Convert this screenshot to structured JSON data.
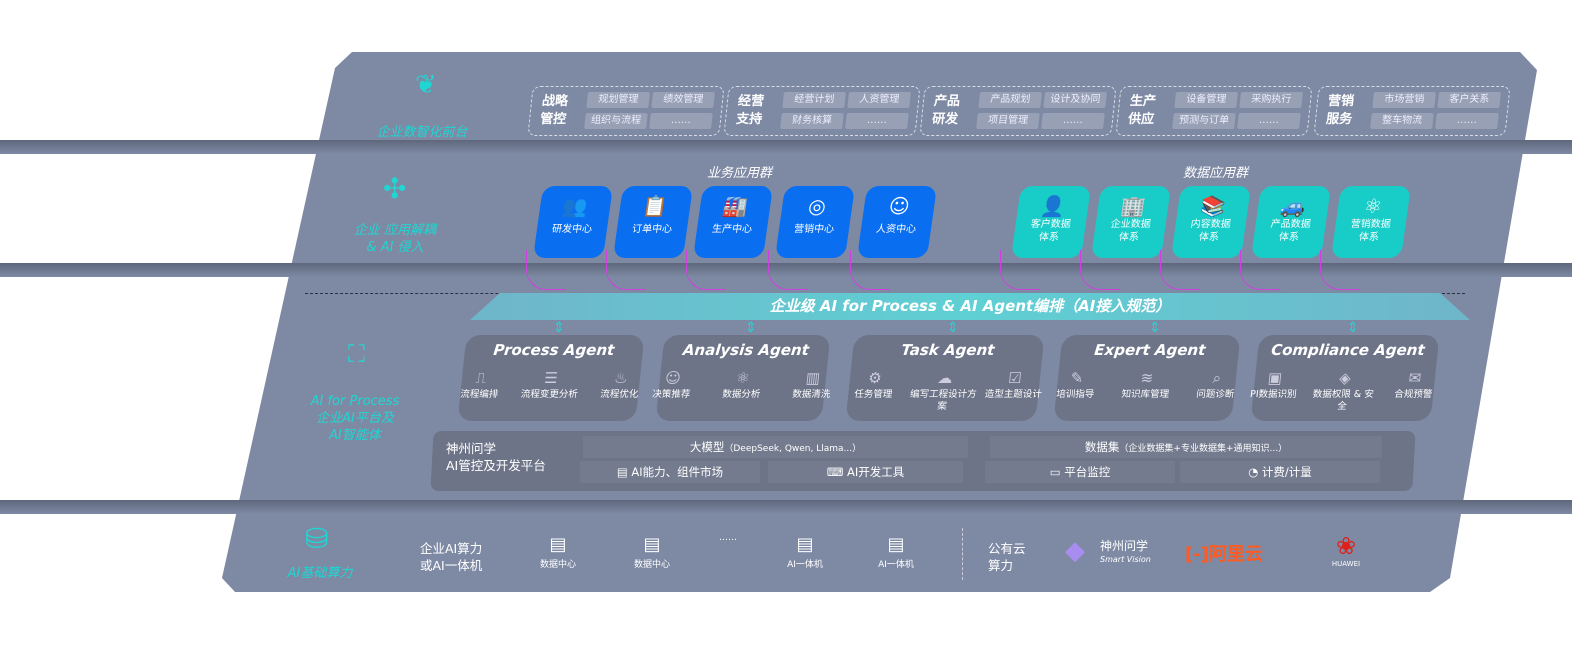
{
  "front": {
    "label": "企业数智化前台",
    "icon": "brain-icon",
    "groups": [
      {
        "title": [
          "战略",
          "管控"
        ],
        "items": [
          "规划管理",
          "绩效管理",
          "组织与流程",
          "……"
        ]
      },
      {
        "title": [
          "经营",
          "支持"
        ],
        "items": [
          "经营计划",
          "人资管理",
          "财务核算",
          "……"
        ]
      },
      {
        "title": [
          "产品",
          "研发"
        ],
        "items": [
          "产品规划",
          "设计及协同",
          "项目管理",
          "……"
        ]
      },
      {
        "title": [
          "生产",
          "供应"
        ],
        "items": [
          "设备管理",
          "采购执行",
          "预测与订单",
          "……"
        ]
      },
      {
        "title": [
          "营销",
          "服务"
        ],
        "items": [
          "市场营销",
          "客户关系",
          "整车物流",
          "……"
        ]
      }
    ]
  },
  "apps": {
    "label": [
      "企业 应用解耦",
      "& AI 侵入"
    ],
    "business_title": "业务应用群",
    "data_title": "数据应用群",
    "business": [
      {
        "label": "研发中心",
        "icon": "team-icon"
      },
      {
        "label": "订单中心",
        "icon": "clipboard-icon"
      },
      {
        "label": "生产中心",
        "icon": "factory-icon"
      },
      {
        "label": "营销中心",
        "icon": "target-icon"
      },
      {
        "label": "人资中心",
        "icon": "people-icon"
      }
    ],
    "data": [
      {
        "label": [
          "客户数据",
          "体系"
        ],
        "icon": "user-icon"
      },
      {
        "label": [
          "企业数据",
          "体系"
        ],
        "icon": "building-icon"
      },
      {
        "label": [
          "内容数据",
          "体系"
        ],
        "icon": "books-icon"
      },
      {
        "label": [
          "产品数据",
          "体系"
        ],
        "icon": "car-icon"
      },
      {
        "label": [
          "营销数据",
          "体系"
        ],
        "icon": "atom-icon"
      }
    ]
  },
  "orchestration": "企业级 AI for Process & AI Agent编排（AI接入规范）",
  "ai": {
    "label": [
      "AI for Process",
      "企业AI平台及",
      "AI智能体"
    ],
    "icon": "face-scan-icon",
    "agents": [
      {
        "title": "Process Agent",
        "items": [
          "流程编排",
          "流程变更分析",
          "流程优化"
        ]
      },
      {
        "title": "Analysis Agent",
        "items": [
          "决策推荐",
          "数据分析",
          "数据清洗"
        ]
      },
      {
        "title": "Task Agent",
        "items": [
          "任务管理",
          "编写工程设计方案",
          "造型主题设计"
        ]
      },
      {
        "title": "Expert Agent",
        "items": [
          "培训指导",
          "知识库管理",
          "问题诊断"
        ]
      },
      {
        "title": "Compliance Agent",
        "items": [
          "PI数据识别",
          "数据权限 & 安全",
          "合规预警"
        ]
      }
    ],
    "platform": {
      "title": [
        "神州问学",
        "AI管控及开发平台"
      ],
      "model": "大模型",
      "model_note": "（DeepSeek, Qwen, Llama...）",
      "dataset": "数据集",
      "dataset_note": "（企业数据集+专业数据集+通用知识...）",
      "market": "AI能力、组件市场",
      "devtools": "AI开发工具",
      "monitor": "平台监控",
      "billing": "计费/计量"
    }
  },
  "infra": {
    "label": "AI基础算力",
    "icon": "database-icon",
    "enterprise": [
      "企业AI算力",
      "或AI一体机"
    ],
    "servers": [
      "数据中心",
      "数据中心",
      "……",
      "AI一体机",
      "AI一体机"
    ],
    "public": [
      "公有云",
      "算力"
    ],
    "vendors": [
      {
        "name": "神州问学",
        "sub": "Smart Vision"
      },
      {
        "name": "阿里云"
      },
      {
        "name": "HUAWEI"
      }
    ]
  },
  "colors": {
    "panel": "#7e8aa4",
    "teal": "#1fd6d2",
    "blue": "#0a6ef0",
    "cyan": "#18cdc8",
    "aliyun": "#ff5a1f",
    "huawei": "#e0201c"
  }
}
